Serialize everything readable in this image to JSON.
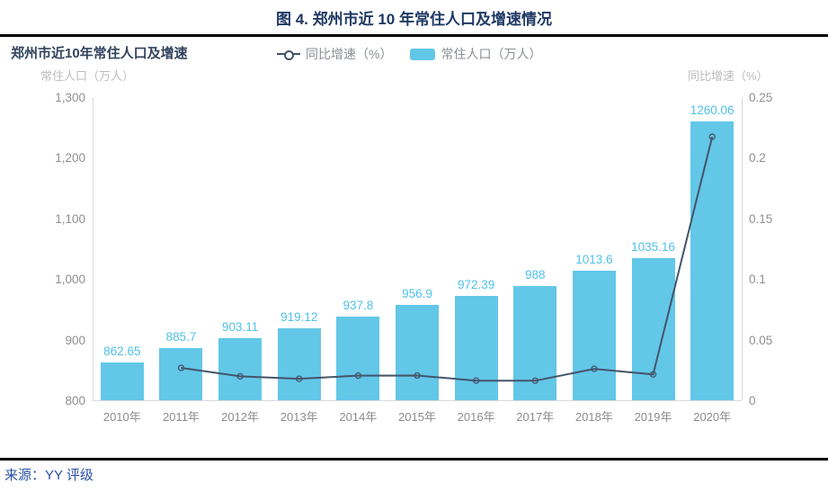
{
  "header": {
    "title": "图 4. 郑州市近 10 年常住人口及增速情况"
  },
  "chart": {
    "title": "郑州市近10年常住人口及增速",
    "left_axis_title": "常住人口（万人）",
    "right_axis_title": "同比增速（%）",
    "legend": [
      {
        "label": "同比增速（%）",
        "marker": "line-circle-icon"
      },
      {
        "label": "常住人口（万人）",
        "marker": "bar-swatch-icon"
      }
    ]
  },
  "chart_data": {
    "type": "bar",
    "title": "郑州市近10年常住人口及增速",
    "categories": [
      "2010年",
      "2011年",
      "2012年",
      "2013年",
      "2014年",
      "2015年",
      "2016年",
      "2017年",
      "2018年",
      "2019年",
      "2020年"
    ],
    "series": [
      {
        "name": "常住人口（万人）",
        "type": "bar",
        "axis": "left",
        "color": "#63C7E8",
        "values": [
          862.65,
          885.7,
          903.11,
          919.12,
          937.8,
          956.9,
          972.39,
          988,
          1013.6,
          1035.16,
          1260.06
        ],
        "value_labels": [
          "862.65",
          "885.7",
          "903.11",
          "919.12",
          "937.8",
          "956.9",
          "972.39",
          "988",
          "1013.6",
          "1035.16",
          "1260.06"
        ]
      },
      {
        "name": "同比增速（%）",
        "type": "line",
        "axis": "right",
        "color": "#44546A",
        "values": [
          null,
          0.0267,
          0.0197,
          0.0177,
          0.0203,
          0.0204,
          0.0162,
          0.0161,
          0.0259,
          0.0213,
          0.2173
        ]
      }
    ],
    "left_axis": {
      "label": "常住人口（万人）",
      "min": 800,
      "max": 1300,
      "tick_labels": [
        "1,300",
        "1,200",
        "1,100",
        "1,000",
        "900",
        "800"
      ]
    },
    "right_axis": {
      "label": "同比增速（%）",
      "min": 0,
      "max": 0.25,
      "tick_labels": [
        "0.25",
        "0.2",
        "0.15",
        "0.1",
        "0.05",
        "0"
      ]
    },
    "grid": false,
    "legend_position": "top"
  },
  "footer": {
    "source": "来源：YY 评级"
  }
}
